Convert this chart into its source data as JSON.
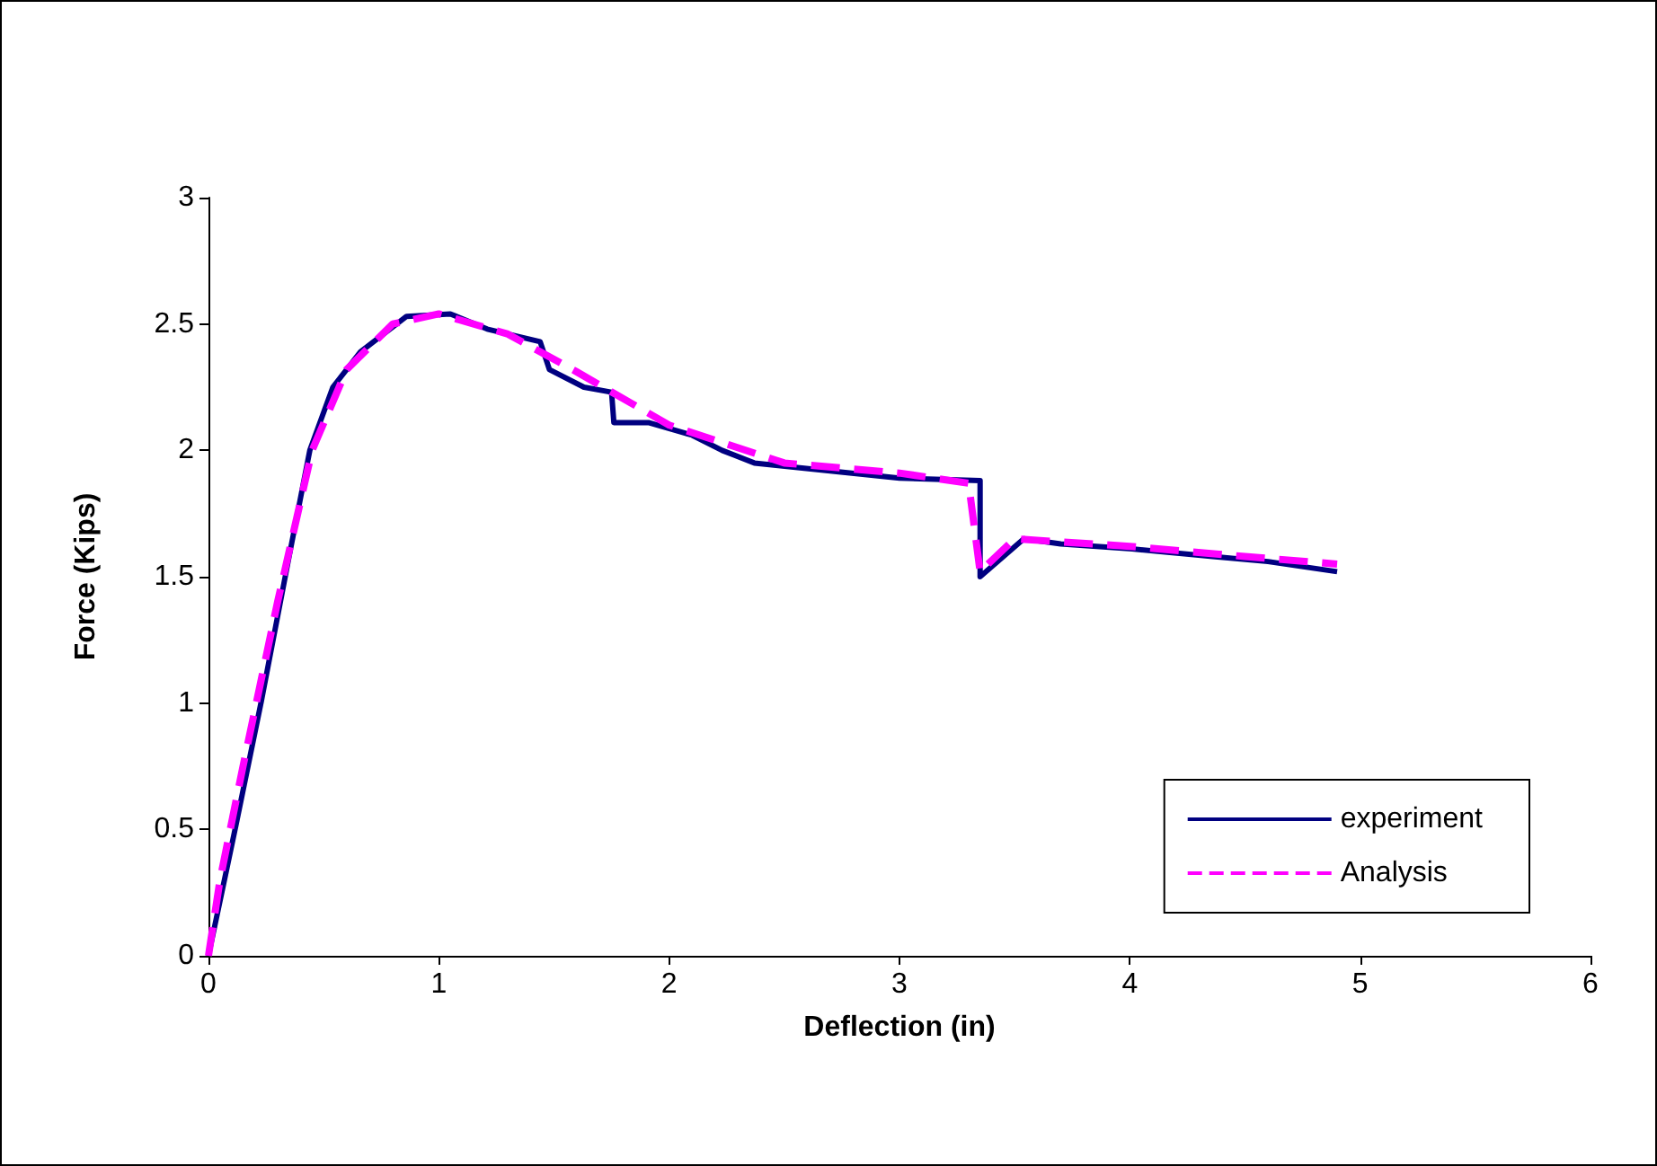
{
  "chart_data": {
    "type": "line",
    "xlabel": "Deflection (in)",
    "ylabel": "Force (Kips)",
    "xlim": [
      0,
      6
    ],
    "xticks": [
      0,
      1,
      2,
      3,
      4,
      5,
      6
    ],
    "ylim": [
      0,
      3
    ],
    "yticks": [
      0,
      0.5,
      1,
      1.5,
      2,
      2.5,
      3
    ],
    "grid": false,
    "legend": "bottom right",
    "marker": "none",
    "series": [
      {
        "name": "experiment",
        "color": "#000080",
        "line_style": "solid",
        "x": [
          0,
          0.12,
          0.23,
          0.35,
          0.44,
          0.54,
          0.66,
          0.86,
          1.05,
          1.21,
          1.44,
          1.48,
          1.63,
          1.75,
          1.76,
          1.91,
          2.1,
          2.23,
          2.37,
          2.68,
          3.0,
          3.35,
          3.35,
          3.54,
          3.7,
          4.01,
          4.36,
          4.6,
          4.9
        ],
        "values": [
          0,
          0.52,
          1.01,
          1.58,
          2.0,
          2.25,
          2.39,
          2.53,
          2.54,
          2.48,
          2.43,
          2.32,
          2.25,
          2.23,
          2.11,
          2.11,
          2.06,
          2.0,
          1.95,
          1.92,
          1.89,
          1.88,
          1.5,
          1.65,
          1.63,
          1.61,
          1.58,
          1.56,
          1.52
        ]
      },
      {
        "name": "Analysis",
        "color": "#ff00ff",
        "line_style": "dashed",
        "x": [
          0,
          0.05,
          0.15,
          0.3,
          0.45,
          0.6,
          0.8,
          1.0,
          1.3,
          1.6,
          2.0,
          2.5,
          3.0,
          3.3,
          3.35,
          3.5,
          4.0,
          4.5,
          4.9
        ],
        "values": [
          0,
          0.3,
          0.75,
          1.4,
          2.0,
          2.32,
          2.5,
          2.54,
          2.46,
          2.31,
          2.1,
          1.95,
          1.91,
          1.87,
          1.52,
          1.65,
          1.62,
          1.58,
          1.55
        ]
      }
    ]
  }
}
